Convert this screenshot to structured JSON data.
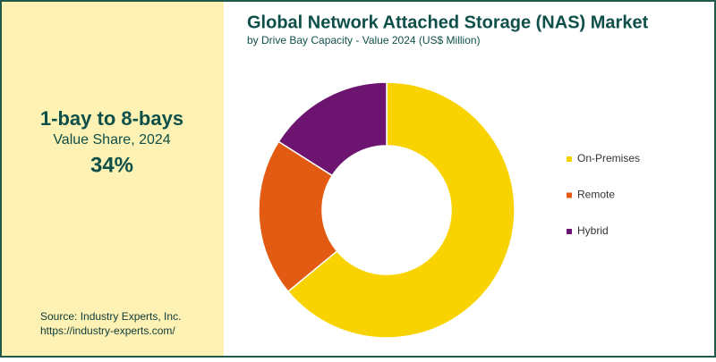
{
  "chart_data": {
    "type": "donut",
    "title": "Global Network Attached Storage (NAS) Market",
    "subtitle": "by Drive Bay Capacity - Value 2024 (US$ Million)",
    "categories": [
      "On-Premises",
      "Remote",
      "Hybrid"
    ],
    "values": [
      64,
      20,
      16
    ],
    "colors": [
      "#f9d300",
      "#e35a12",
      "#6c1470"
    ],
    "legend": "right"
  },
  "panel": {
    "heading": "1-bay to 8-bays",
    "caption": "Value Share, 2024",
    "figure": "34%",
    "source": "Source: Industry Experts, Inc.",
    "url": "https://industry-experts.com/"
  }
}
